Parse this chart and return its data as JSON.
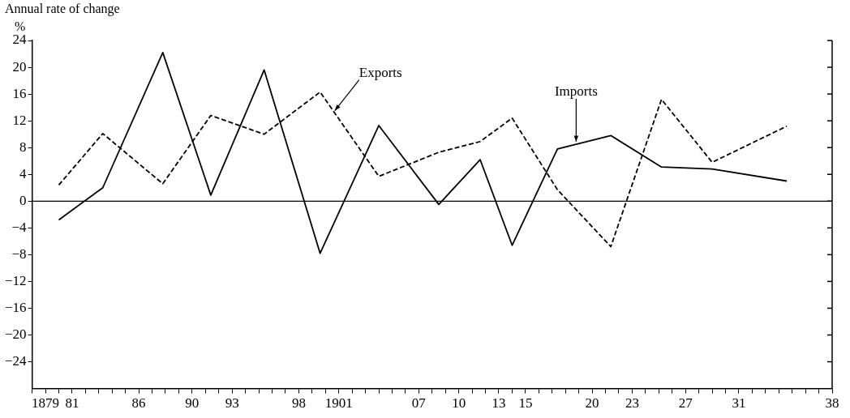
{
  "chart_data": {
    "type": "line",
    "ylabel": "Annual rate of change",
    "annotations": [
      "%"
    ],
    "x": [
      1880,
      1883.3,
      1887.8,
      1891.4,
      1895.4,
      1899.6,
      1904,
      1908.5,
      1911.6,
      1914,
      1917.4,
      1921.4,
      1925.2,
      1929,
      1934.6
    ],
    "series": [
      {
        "name": "Exports",
        "color": "#000000",
        "line_style": "dashed",
        "values": [
          2.4,
          10.1,
          2.6,
          12.8,
          10.0,
          16.3,
          3.7,
          7.3,
          8.9,
          12.4,
          1.7,
          -6.8,
          15.2,
          5.8,
          11.2
        ]
      },
      {
        "name": "Imports",
        "color": "#000000",
        "line_style": "solid",
        "values": [
          -2.8,
          2.0,
          22.2,
          0.9,
          19.6,
          -7.8,
          11.3,
          -0.5,
          6.2,
          -6.6,
          7.8,
          9.8,
          5.1,
          4.8,
          3.0
        ]
      }
    ],
    "xlim": [
      1878,
      1938
    ],
    "xticks": [
      {
        "value": 1878,
        "label": null
      },
      {
        "value": 1879,
        "label": "1879"
      },
      {
        "value": 1880,
        "label": null
      },
      {
        "value": 1881,
        "label": "81"
      },
      {
        "value": 1882,
        "label": null
      },
      {
        "value": 1883,
        "label": null
      },
      {
        "value": 1884,
        "label": null
      },
      {
        "value": 1885,
        "label": null
      },
      {
        "value": 1886,
        "label": "86"
      },
      {
        "value": 1887,
        "label": null
      },
      {
        "value": 1888,
        "label": null
      },
      {
        "value": 1889,
        "label": null
      },
      {
        "value": 1890,
        "label": "90"
      },
      {
        "value": 1891,
        "label": null
      },
      {
        "value": 1892,
        "label": null
      },
      {
        "value": 1893,
        "label": "93"
      },
      {
        "value": 1894,
        "label": null
      },
      {
        "value": 1895,
        "label": null
      },
      {
        "value": 1896,
        "label": null
      },
      {
        "value": 1897,
        "label": null
      },
      {
        "value": 1898,
        "label": "98"
      },
      {
        "value": 1899,
        "label": null
      },
      {
        "value": 1900,
        "label": null
      },
      {
        "value": 1901,
        "label": "1901"
      },
      {
        "value": 1902,
        "label": null
      },
      {
        "value": 1903,
        "label": null
      },
      {
        "value": 1904,
        "label": null
      },
      {
        "value": 1905,
        "label": null
      },
      {
        "value": 1906,
        "label": null
      },
      {
        "value": 1907,
        "label": "07"
      },
      {
        "value": 1908,
        "label": null
      },
      {
        "value": 1909,
        "label": null
      },
      {
        "value": 1910,
        "label": "10"
      },
      {
        "value": 1911,
        "label": null
      },
      {
        "value": 1912,
        "label": null
      },
      {
        "value": 1913,
        "label": "13"
      },
      {
        "value": 1914,
        "label": null
      },
      {
        "value": 1915,
        "label": "15"
      },
      {
        "value": 1916,
        "label": null
      },
      {
        "value": 1917,
        "label": null
      },
      {
        "value": 1918,
        "label": null
      },
      {
        "value": 1919,
        "label": null
      },
      {
        "value": 1920,
        "label": "20"
      },
      {
        "value": 1921,
        "label": null
      },
      {
        "value": 1922,
        "label": null
      },
      {
        "value": 1923,
        "label": "23"
      },
      {
        "value": 1924,
        "label": null
      },
      {
        "value": 1925,
        "label": null
      },
      {
        "value": 1926,
        "label": null
      },
      {
        "value": 1927,
        "label": "27"
      },
      {
        "value": 1928,
        "label": null
      },
      {
        "value": 1929,
        "label": null
      },
      {
        "value": 1930,
        "label": null
      },
      {
        "value": 1931,
        "label": "31"
      },
      {
        "value": 1932,
        "label": null
      },
      {
        "value": 1933,
        "label": null
      },
      {
        "value": 1934,
        "label": null
      },
      {
        "value": 1935,
        "label": null
      },
      {
        "value": 1936,
        "label": null
      },
      {
        "value": 1937,
        "label": null
      },
      {
        "value": 1938,
        "label": "38"
      }
    ],
    "ylim": [
      -28,
      24
    ],
    "yticks": [
      {
        "value": -24,
        "label": "−24"
      },
      {
        "value": -20,
        "label": "−20"
      },
      {
        "value": -16,
        "label": "−16"
      },
      {
        "value": -12,
        "label": "−12"
      },
      {
        "value": -8,
        "label": "−8"
      },
      {
        "value": -4,
        "label": "−4"
      },
      0,
      4,
      8,
      12,
      16,
      20,
      24
    ],
    "ref_lines": [
      {
        "axis": "y",
        "value": 0,
        "color": "#000000",
        "line_style": "solid"
      }
    ],
    "grid": false,
    "legend": false,
    "marker": "none"
  }
}
